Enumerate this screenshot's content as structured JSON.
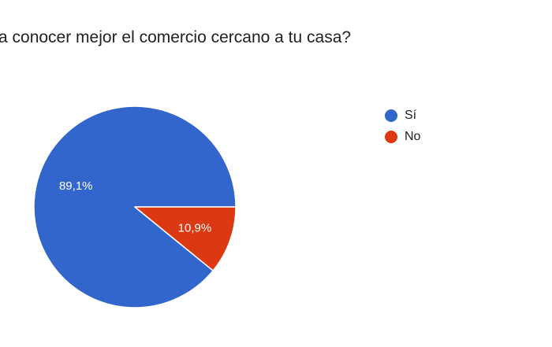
{
  "question": {
    "title": "a conocer mejor el comercio cercano a tu casa?"
  },
  "chart_data": {
    "type": "pie",
    "categories": [
      "Sí",
      "No"
    ],
    "values": [
      89.1,
      10.9
    ],
    "value_labels": [
      "89,1%",
      "10,9%"
    ],
    "colors": [
      "#3366cc",
      "#dc3912"
    ],
    "start_angle_deg": 0,
    "direction": "counterclockwise",
    "legend_position": "right"
  }
}
